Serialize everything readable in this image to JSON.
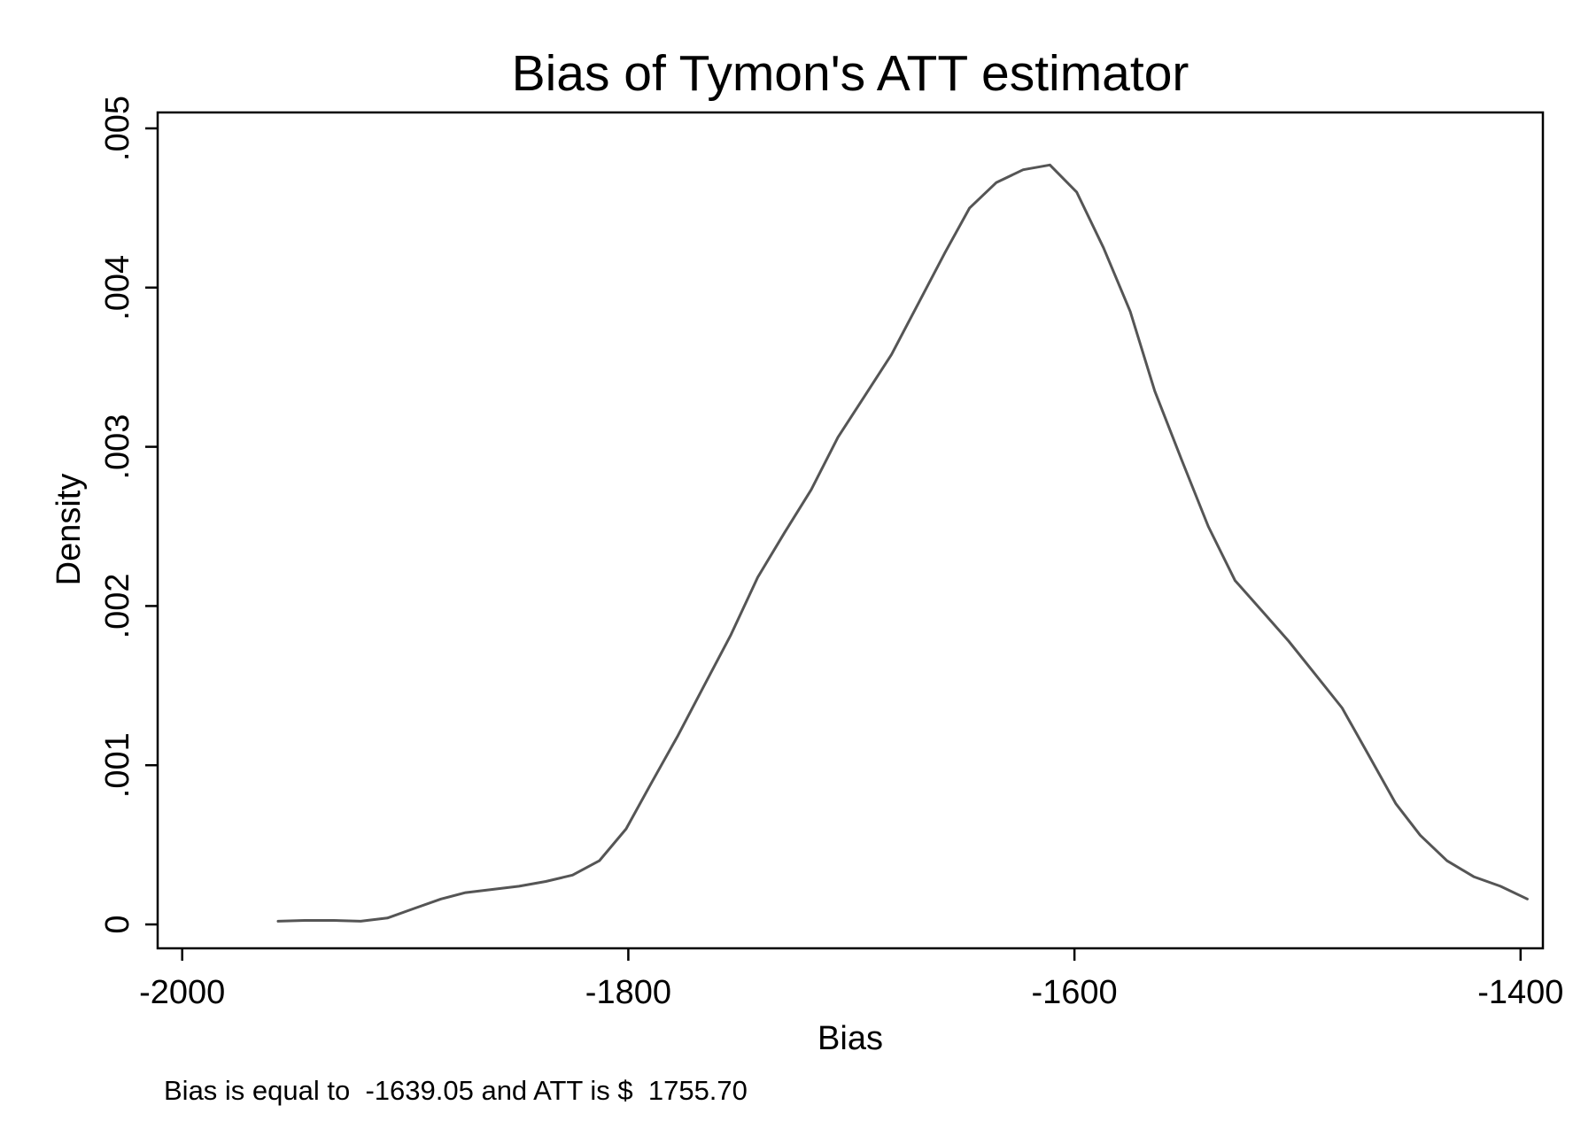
{
  "chart_data": {
    "type": "line",
    "title": "Bias of Tymon's ATT estimator",
    "xlabel": "Bias",
    "ylabel": "Density",
    "note": "Bias is equal to  -1639.05 and ATT is $  1755.70",
    "xlim": [
      -2011,
      -1390
    ],
    "ylim": [
      -0.00015,
      0.0051
    ],
    "xticks": [
      -2000,
      -1800,
      -1600,
      -1400
    ],
    "xtick_labels": [
      "-2000",
      "-1800",
      "-1600",
      "-1400"
    ],
    "yticks": [
      0,
      0.001,
      0.002,
      0.003,
      0.004,
      0.005
    ],
    "ytick_labels": [
      "0",
      ".001",
      ".002",
      ".003",
      ".004",
      ".005"
    ],
    "grid": false,
    "line_color": "#555555",
    "series": [
      {
        "x": [
          -1957,
          -1945,
          -1932,
          -1920,
          -1908,
          -1896,
          -1884,
          -1873,
          -1861,
          -1849,
          -1837,
          -1825,
          -1813,
          -1801,
          -1790,
          -1778,
          -1766,
          -1754,
          -1742,
          -1730,
          -1718,
          -1706,
          -1694,
          -1682,
          -1670,
          -1658,
          -1647,
          -1635,
          -1623,
          -1611,
          -1599,
          -1587,
          -1575,
          -1564,
          -1552,
          -1540,
          -1528,
          -1516,
          -1504,
          -1492,
          -1480,
          -1468,
          -1456,
          -1445,
          -1433,
          -1421,
          -1409,
          -1397
        ],
        "y": [
          2e-05,
          2.5e-05,
          2.5e-05,
          2e-05,
          4e-05,
          0.0001,
          0.00016,
          0.0002,
          0.00022,
          0.00024,
          0.00027,
          0.00031,
          0.0004,
          0.0006,
          0.00088,
          0.00118,
          0.0015,
          0.00182,
          0.00218,
          0.00246,
          0.00273,
          0.00306,
          0.00332,
          0.00358,
          0.0039,
          0.00422,
          0.0045,
          0.00466,
          0.00474,
          0.00477,
          0.0046,
          0.00425,
          0.00385,
          0.00335,
          0.00292,
          0.0025,
          0.00216,
          0.00197,
          0.00178,
          0.00157,
          0.00136,
          0.00106,
          0.00076,
          0.00056,
          0.0004,
          0.0003,
          0.00024,
          0.00016
        ]
      }
    ]
  }
}
